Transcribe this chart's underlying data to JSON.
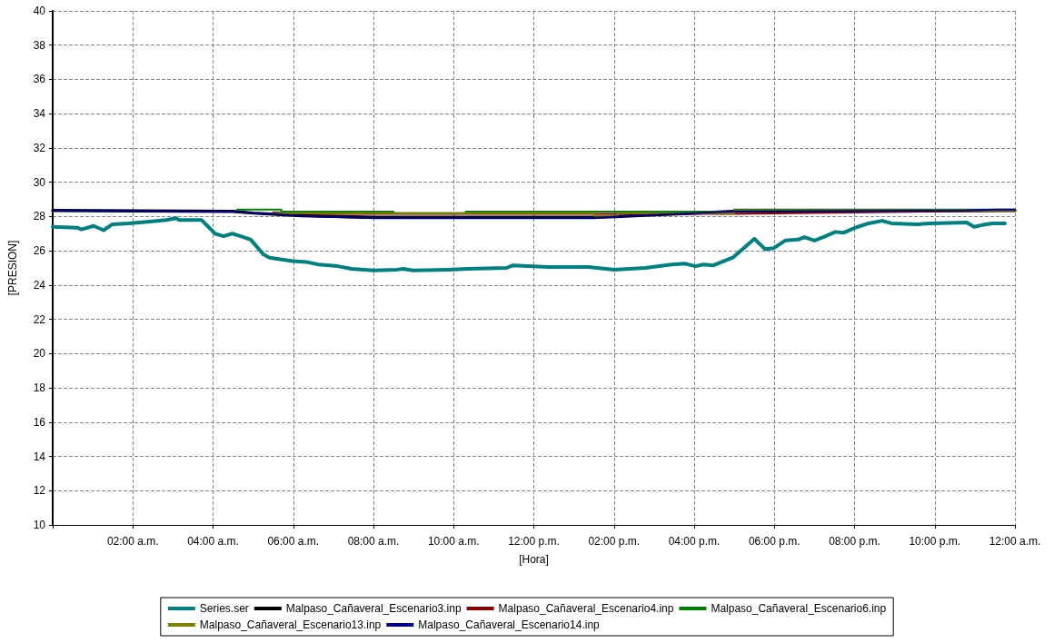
{
  "chart_data": {
    "type": "line",
    "xlabel": "[Hora]",
    "ylabel": "[PRESION]",
    "xlim": [
      0,
      24
    ],
    "ylim": [
      10,
      40
    ],
    "xticks": [
      {
        "value": 0,
        "label": null
      },
      {
        "value": 2,
        "label": "02:00 a.m."
      },
      {
        "value": 4,
        "label": "04:00 a.m."
      },
      {
        "value": 6,
        "label": "06:00 a.m."
      },
      {
        "value": 8,
        "label": "08:00 a.m."
      },
      {
        "value": 10,
        "label": "10:00 a.m."
      },
      {
        "value": 12,
        "label": "12:00 p.m."
      },
      {
        "value": 14,
        "label": "02:00 p.m."
      },
      {
        "value": 16,
        "label": "04:00 p.m."
      },
      {
        "value": 18,
        "label": "06:00 p.m."
      },
      {
        "value": 20,
        "label": "08:00 p.m."
      },
      {
        "value": 22,
        "label": "10:00 p.m."
      },
      {
        "value": 24,
        "label": "12:00 a.m."
      }
    ],
    "yticks": [
      10,
      12,
      14,
      16,
      18,
      20,
      22,
      24,
      26,
      28,
      30,
      32,
      34,
      36,
      38,
      40
    ],
    "grid": true,
    "legend": "bottom",
    "marker": "none",
    "line_style": "solid",
    "series": [
      {
        "name": "Series.ser",
        "color": "#008080",
        "x": [
          0,
          0.61,
          0.72,
          1.02,
          1.27,
          1.49,
          1.9,
          2.42,
          2.83,
          3.08,
          3.15,
          3.71,
          4.05,
          4.26,
          4.48,
          4.69,
          4.94,
          5.25,
          5.41,
          5.98,
          6.32,
          6.63,
          7.11,
          7.45,
          8.01,
          8.58,
          8.74,
          8.99,
          9.87,
          10.35,
          11.32,
          11.48,
          12.36,
          13.36,
          14.01,
          14.78,
          15.44,
          15.76,
          16.03,
          16.23,
          16.48,
          16.96,
          17.21,
          17.5,
          17.77,
          17.98,
          18.27,
          18.59,
          18.75,
          19.0,
          19.22,
          19.52,
          19.72,
          20.08,
          20.35,
          20.69,
          20.92,
          21.58,
          21.89,
          22.8,
          22.98,
          23.18,
          23.43,
          23.75
        ],
        "values": [
          27.4,
          27.35,
          27.25,
          27.45,
          27.2,
          27.55,
          27.6,
          27.7,
          27.8,
          27.9,
          27.8,
          27.8,
          27.0,
          26.85,
          27.0,
          26.85,
          26.65,
          25.8,
          25.6,
          25.4,
          25.35,
          25.2,
          25.1,
          24.95,
          24.85,
          24.9,
          24.95,
          24.85,
          24.9,
          24.95,
          25.0,
          25.15,
          25.05,
          25.05,
          24.9,
          25.0,
          25.2,
          25.25,
          25.1,
          25.2,
          25.15,
          25.6,
          26.1,
          26.7,
          26.1,
          26.15,
          26.6,
          26.65,
          26.8,
          26.6,
          26.8,
          27.1,
          27.05,
          27.4,
          27.6,
          27.75,
          27.6,
          27.55,
          27.6,
          27.65,
          27.4,
          27.5,
          27.6,
          27.6
        ]
      },
      {
        "name": "Malpaso_Cañaveral_Escenario3.inp",
        "color": "#000000",
        "x": [
          0,
          4.5,
          5.0,
          6.2,
          8.0,
          13.5,
          14.05,
          15.0,
          17.0,
          24
        ],
        "values": [
          28.35,
          28.3,
          28.2,
          28.05,
          27.95,
          27.95,
          28.0,
          28.1,
          28.3,
          28.35
        ]
      },
      {
        "name": "Malpaso_Cañaveral_Escenario4.inp",
        "color": "#8b0000",
        "x": [
          5.5,
          6.5,
          17.0,
          24
        ],
        "values": [
          28.25,
          28.15,
          28.15,
          28.35
        ]
      },
      {
        "name": "Malpaso_Cañaveral_Escenario6.inp",
        "color": "#008000",
        "x": [
          4.6,
          5.7,
          5.7,
          8.5,
          8.5,
          10.3,
          10.3,
          17.0,
          17.0,
          24
        ],
        "values": [
          28.4,
          28.4,
          28.28,
          28.28,
          28.2,
          28.2,
          28.28,
          28.28,
          28.4,
          28.4
        ]
      },
      {
        "name": "Malpaso_Cañaveral_Escenario13.inp",
        "color": "#808000",
        "x": [
          5.5,
          13.5,
          13.5,
          14.1,
          14.1,
          17.0,
          17.0,
          24
        ],
        "values": [
          28.2,
          28.2,
          28.05,
          28.05,
          28.2,
          28.2,
          28.35,
          28.35
        ]
      },
      {
        "name": "Malpaso_Cañaveral_Escenario14.inp",
        "color": "#00008b",
        "x": [
          0,
          4.53,
          5.0,
          5.5,
          6.2,
          6.75,
          8.0,
          13.5,
          14.05,
          15.0,
          17.0,
          22.8,
          23.5,
          24
        ],
        "values": [
          28.35,
          28.28,
          28.2,
          28.15,
          28.03,
          28.0,
          27.9,
          27.9,
          28.0,
          28.1,
          28.3,
          28.35,
          28.4,
          28.4
        ]
      }
    ]
  }
}
